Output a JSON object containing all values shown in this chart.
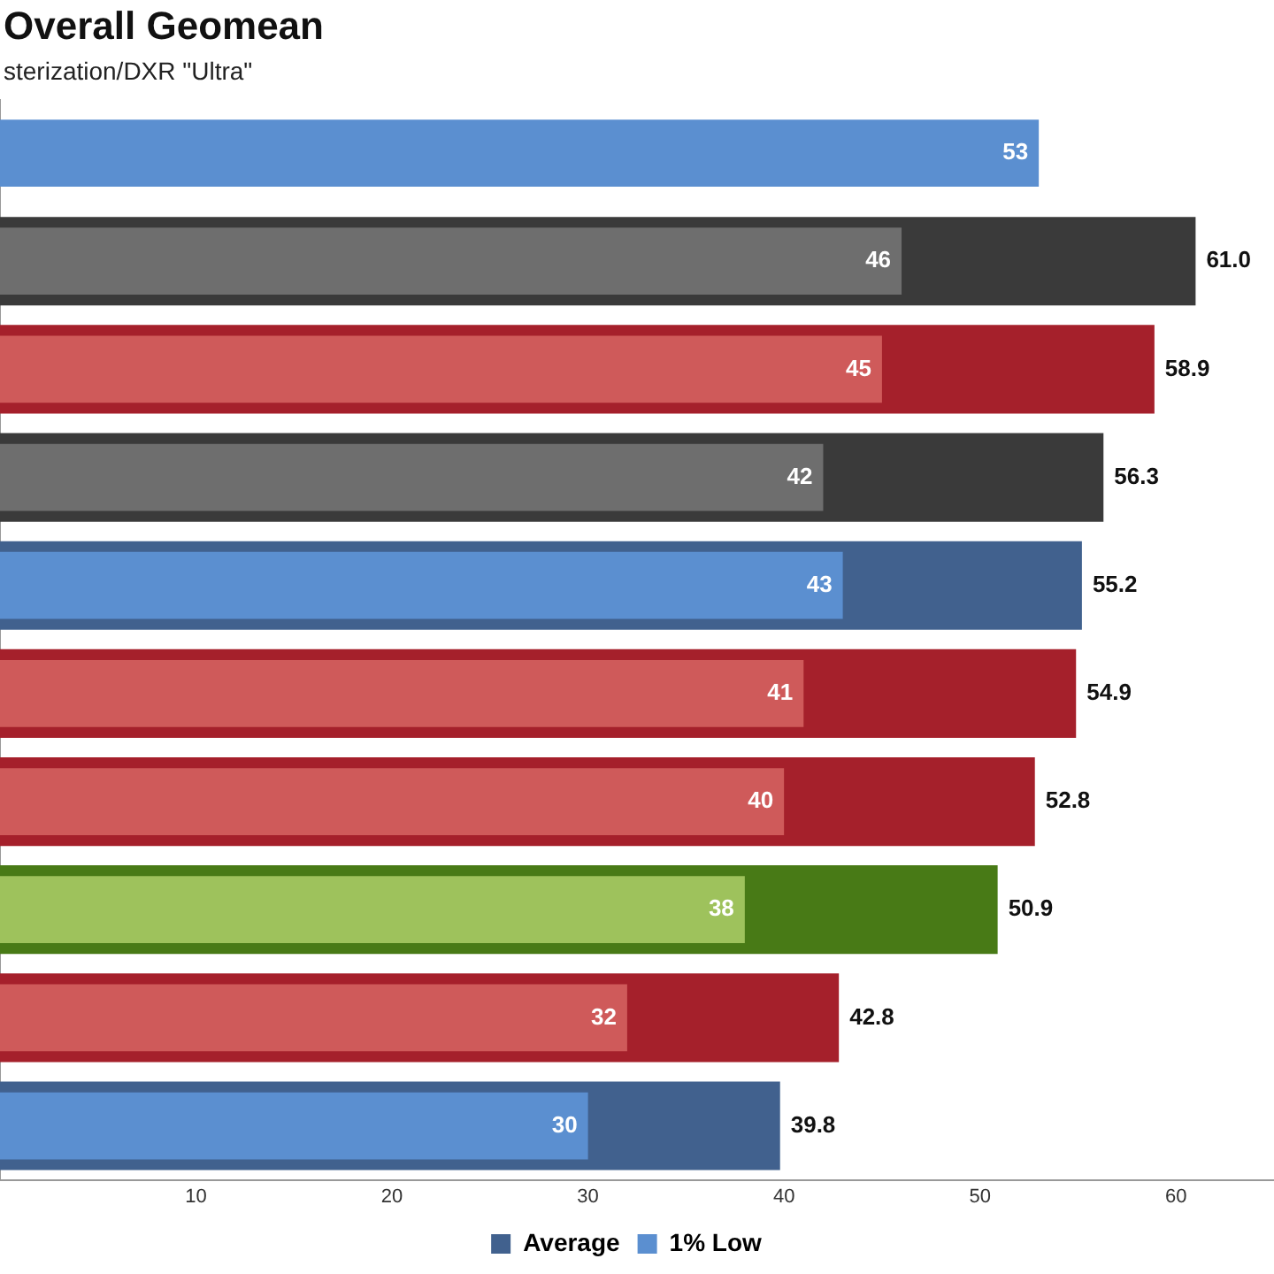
{
  "chart_data": {
    "type": "bar",
    "orientation": "horizontal",
    "title": "Overall Geomean",
    "subtitle": "sterization/DXR \"Ultra\"",
    "categories": [
      null,
      null,
      null,
      null,
      null,
      null,
      null,
      null,
      null,
      null
    ],
    "series": [
      {
        "name": "Average",
        "color": "#41618e",
        "colors": [
          "#41618e",
          "#3a3a3a",
          "#a5202b",
          "#3a3a3a",
          "#41618e",
          "#a5202b",
          "#a5202b",
          "#487a16",
          "#a5202b",
          "#41618e"
        ],
        "values": [
          null,
          61.0,
          58.9,
          56.3,
          55.2,
          54.9,
          52.8,
          50.9,
          42.8,
          39.8
        ],
        "value_labels": [
          null,
          "61.0",
          "58.9",
          "56.3",
          "55.2",
          "54.9",
          "52.8",
          "50.9",
          "42.8",
          "39.8"
        ]
      },
      {
        "name": "1% Low",
        "color": "#5b8fd0",
        "colors": [
          "#5b8fd0",
          "#6e6e6e",
          "#cf5a5a",
          "#6e6e6e",
          "#5b8fd0",
          "#cf5a5a",
          "#cf5a5a",
          "#9ec25c",
          "#cf5a5a",
          "#5b8fd0"
        ],
        "values": [
          53,
          46,
          45,
          42,
          43,
          41,
          40,
          38,
          32,
          30
        ],
        "value_labels": [
          "53",
          "46",
          "45",
          "42",
          "43",
          "41",
          "40",
          "38",
          "32",
          "30"
        ]
      }
    ],
    "xlim": [
      0,
      65
    ],
    "xticks": [
      10,
      20,
      30,
      40,
      50,
      60
    ],
    "grid": false,
    "legend": "bottom"
  }
}
